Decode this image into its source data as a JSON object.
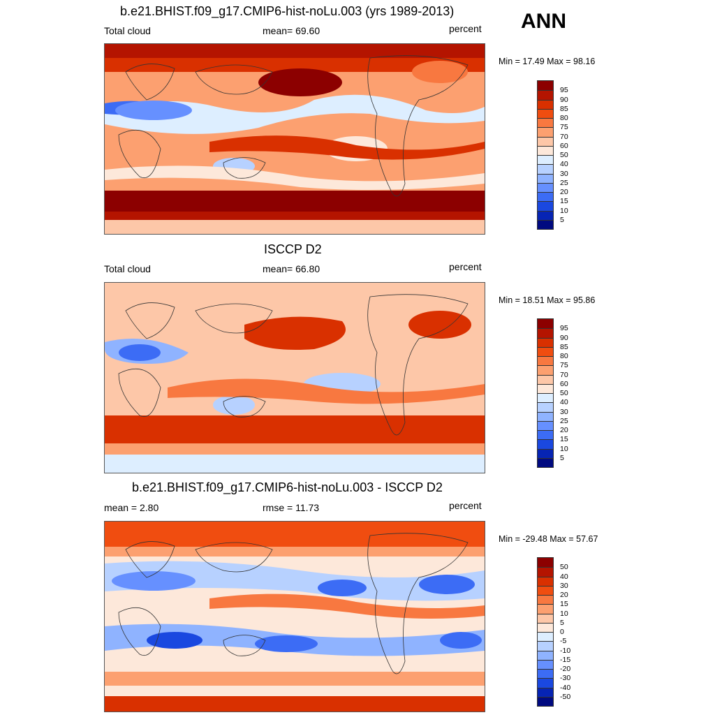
{
  "header": {
    "season": "ANN"
  },
  "panels": [
    {
      "title": "b.e21.BHIST.f09_g17.CMIP6-hist-noLu.003 (yrs 1989-2013)",
      "left_label": "Total cloud",
      "center_label": "mean=  69.60",
      "units": "percent",
      "minmax": "Min =  17.49 Max =  98.16",
      "colorbar": {
        "labels": [
          "95",
          "90",
          "85",
          "80",
          "75",
          "70",
          "60",
          "50",
          "40",
          "30",
          "25",
          "20",
          "15",
          "10",
          "5"
        ],
        "colors": [
          "#8c0000",
          "#b41400",
          "#d93000",
          "#f04d10",
          "#f87840",
          "#fca070",
          "#fdc7a8",
          "#fde8da",
          "#ddeeff",
          "#b7d1ff",
          "#8fb3ff",
          "#6690ff",
          "#3c6cf5",
          "#1a48e0",
          "#0624b4",
          "#000a80"
        ]
      }
    },
    {
      "title": "ISCCP D2",
      "left_label": "Total cloud",
      "center_label": "mean=  66.80",
      "units": "percent",
      "minmax": "Min =  18.51 Max =  95.86",
      "colorbar": {
        "labels": [
          "95",
          "90",
          "85",
          "80",
          "75",
          "70",
          "60",
          "50",
          "40",
          "30",
          "25",
          "20",
          "15",
          "10",
          "5"
        ],
        "colors": [
          "#8c0000",
          "#b41400",
          "#d93000",
          "#f04d10",
          "#f87840",
          "#fca070",
          "#fdc7a8",
          "#fde8da",
          "#ddeeff",
          "#b7d1ff",
          "#8fb3ff",
          "#6690ff",
          "#3c6cf5",
          "#1a48e0",
          "#0624b4",
          "#000a80"
        ]
      }
    },
    {
      "title": "b.e21.BHIST.f09_g17.CMIP6-hist-noLu.003 - ISCCP D2",
      "left_label": "mean =   2.80",
      "center_label": "rmse =  11.73",
      "units": "percent",
      "minmax": "Min = -29.48 Max =  57.67",
      "colorbar": {
        "labels": [
          "50",
          "40",
          "30",
          "20",
          "15",
          "10",
          "5",
          "0",
          "-5",
          "-10",
          "-15",
          "-20",
          "-30",
          "-40",
          "-50"
        ],
        "colors": [
          "#8c0000",
          "#b41400",
          "#d93000",
          "#f04d10",
          "#f87840",
          "#fca070",
          "#fdc7a8",
          "#fde8da",
          "#ddeeff",
          "#b7d1ff",
          "#8fb3ff",
          "#6690ff",
          "#3c6cf5",
          "#1a48e0",
          "#0624b4",
          "#000a80"
        ]
      }
    }
  ]
}
